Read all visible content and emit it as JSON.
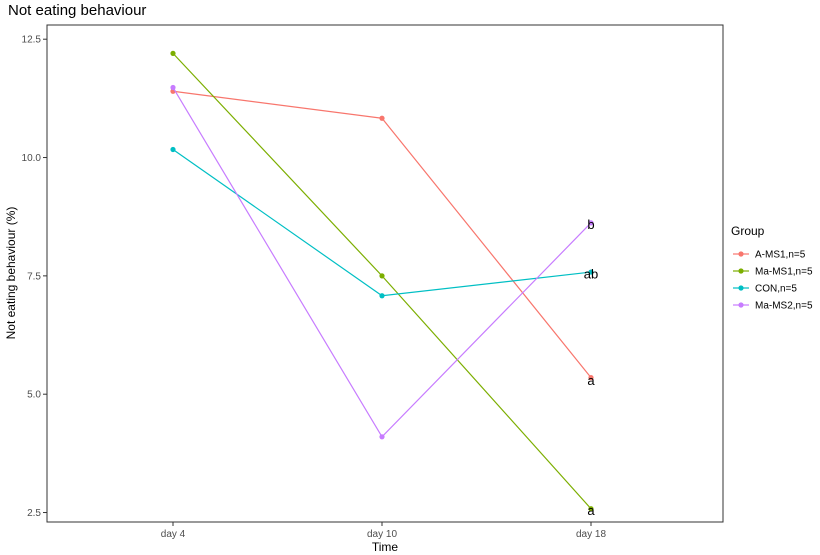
{
  "chart_data": {
    "type": "line",
    "title": "Not eating behaviour",
    "xlabel": "Time",
    "ylabel": "Not eating behaviour (%)",
    "categories": [
      "day 4",
      "day 10",
      "day 18"
    ],
    "ylim": [
      2.3,
      12.8
    ],
    "yticks": [
      2.5,
      5.0,
      7.5,
      10.0,
      12.5
    ],
    "ytick_labels": [
      "2.5",
      "5.0",
      "7.5",
      "10.0",
      "12.5"
    ],
    "grid": false,
    "legend": {
      "title": "Group",
      "position": "right"
    },
    "series": [
      {
        "name": "A-MS1,n=5",
        "color": "#F8766D",
        "values": [
          11.4,
          10.83,
          5.35
        ]
      },
      {
        "name": "Ma-MS1,n=5",
        "color": "#7CAE00",
        "values": [
          12.2,
          7.5,
          2.58
        ]
      },
      {
        "name": "CON,n=5",
        "color": "#00BFC4",
        "values": [
          10.17,
          7.08,
          7.58
        ]
      },
      {
        "name": "Ma-MS2,n=5",
        "color": "#C77CFF",
        "values": [
          11.48,
          4.1,
          8.62
        ]
      }
    ],
    "annotations": [
      {
        "text": "b",
        "x": "day 18",
        "y": 8.6
      },
      {
        "text": "ab",
        "x": "day 18",
        "y": 7.55
      },
      {
        "text": "a",
        "x": "day 18",
        "y": 5.3
      },
      {
        "text": "a",
        "x": "day 18",
        "y": 2.55
      }
    ]
  }
}
